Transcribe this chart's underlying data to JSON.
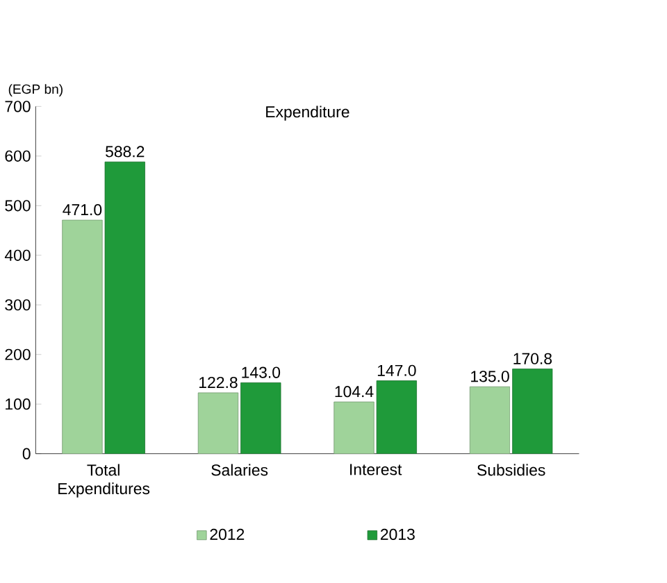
{
  "chart_data": {
    "type": "bar",
    "title": "Expenditure",
    "ylabel": "(EGP bn)",
    "categories": [
      "Total Expenditures",
      "Salaries",
      "Interest",
      "Subsidies"
    ],
    "series": [
      {
        "name": "2012",
        "color": "#9fd39a",
        "values": [
          471.0,
          122.8,
          104.4,
          135.0
        ],
        "value_labels": [
          "471.0",
          "122.8",
          "104.4",
          "135.0"
        ]
      },
      {
        "name": "2013",
        "color": "#1f9a3a",
        "values": [
          588.2,
          143.0,
          147.0,
          170.8
        ],
        "value_labels": [
          "588.2",
          "143.0",
          "147.0",
          "170.8"
        ]
      }
    ],
    "ylim": [
      0,
      700
    ],
    "yticks": [
      0,
      100,
      200,
      300,
      400,
      500,
      600,
      700
    ],
    "grid": false,
    "legend": "bottom"
  }
}
